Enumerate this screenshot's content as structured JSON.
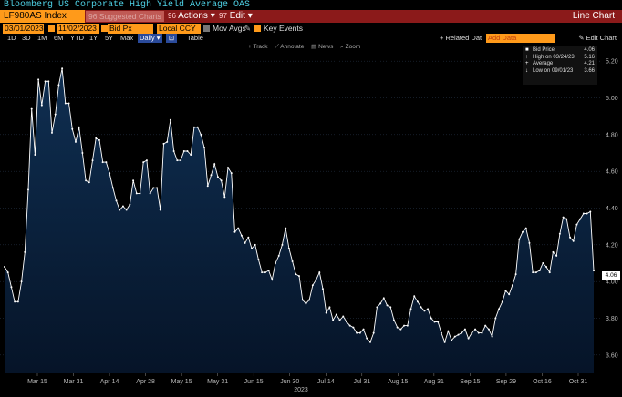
{
  "window_title": "Bloomberg US Corporate High Yield Average OAS",
  "command_bar": {
    "ticker": "LF980AS Index",
    "hint": "96 Suggested Charts",
    "actions": [
      {
        "num": "96",
        "label": "Actions ▾"
      },
      {
        "num": "97",
        "label": "Edit ▾"
      }
    ],
    "view_title": "Line Chart"
  },
  "controls": {
    "start_date": "03/01/2023",
    "end_date": "11/02/2023",
    "field": "Bid Px",
    "currency": "Local CCY",
    "mov_avgs": "Mov Avgs",
    "key_events": "Key Events"
  },
  "periods": [
    "1D",
    "3D",
    "1M",
    "6M",
    "YTD",
    "1Y",
    "5Y",
    "Max"
  ],
  "frequency": "Daily ▾",
  "table_label": "Table",
  "related_data_label": "+ Related Dat",
  "add_data_placeholder": "Add Data",
  "edit_chart_label": "✎ Edit Chart",
  "tools": [
    "+ Track",
    "⟋ Annotate",
    "▤ News",
    "⌕ Zoom"
  ],
  "legend": [
    {
      "icon": "■",
      "label": "Bid Price",
      "value": "4.06"
    },
    {
      "icon": "↑",
      "label": "High on 03/24/23",
      "value": "5.16"
    },
    {
      "icon": "+",
      "label": "Average",
      "value": "4.21"
    },
    {
      "icon": "↓",
      "label": "Low on 09/01/23",
      "value": "3.66"
    }
  ],
  "last_value_label": "4.06",
  "year_label": "2023",
  "colors": {
    "line": "#ffffff",
    "fill_top": "#0f2f52",
    "fill_bottom": "#061428",
    "accent": "#ff9a1a"
  },
  "chart_data": {
    "type": "area",
    "x_tick_labels": [
      "Mar 15",
      "Mar 31",
      "Apr 14",
      "Apr 28",
      "May 15",
      "May 31",
      "Jun 15",
      "Jun 30",
      "Jul 14",
      "Jul 31",
      "Aug 15",
      "Aug 31",
      "Sep 15",
      "Sep 29",
      "Oct 16",
      "Oct 31"
    ],
    "y_tick_labels": [
      "3.60",
      "3.80",
      "4.00",
      "4.20",
      "4.40",
      "4.60",
      "4.80",
      "5.00",
      "5.20"
    ],
    "ylim": [
      3.5,
      5.3
    ],
    "values": [
      4.08,
      4.05,
      3.97,
      3.89,
      3.89,
      4.0,
      4.16,
      4.5,
      4.94,
      4.69,
      5.1,
      4.96,
      5.09,
      5.09,
      4.81,
      4.91,
      5.07,
      5.16,
      4.97,
      4.97,
      4.83,
      4.76,
      4.84,
      4.7,
      4.55,
      4.54,
      4.66,
      4.78,
      4.77,
      4.65,
      4.65,
      4.59,
      4.51,
      4.44,
      4.39,
      4.41,
      4.39,
      4.42,
      4.55,
      4.48,
      4.48,
      4.65,
      4.66,
      4.48,
      4.51,
      4.51,
      4.39,
      4.75,
      4.76,
      4.88,
      4.71,
      4.66,
      4.66,
      4.71,
      4.71,
      4.69,
      4.84,
      4.84,
      4.8,
      4.73,
      4.52,
      4.58,
      4.64,
      4.57,
      4.55,
      4.46,
      4.62,
      4.59,
      4.27,
      4.29,
      4.25,
      4.21,
      4.24,
      4.18,
      4.2,
      4.12,
      4.05,
      4.05,
      4.06,
      4.01,
      4.1,
      4.14,
      4.2,
      4.29,
      4.18,
      4.11,
      4.04,
      4.03,
      3.9,
      3.88,
      3.9,
      3.98,
      4.01,
      4.05,
      3.96,
      3.83,
      3.86,
      3.79,
      3.82,
      3.79,
      3.81,
      3.78,
      3.76,
      3.75,
      3.72,
      3.72,
      3.74,
      3.69,
      3.67,
      3.72,
      3.86,
      3.88,
      3.91,
      3.87,
      3.86,
      3.79,
      3.75,
      3.74,
      3.76,
      3.76,
      3.85,
      3.92,
      3.89,
      3.86,
      3.84,
      3.85,
      3.8,
      3.78,
      3.78,
      3.72,
      3.67,
      3.73,
      3.68,
      3.7,
      3.71,
      3.72,
      3.74,
      3.69,
      3.72,
      3.74,
      3.72,
      3.72,
      3.76,
      3.74,
      3.7,
      3.8,
      3.85,
      3.89,
      3.95,
      3.93,
      3.98,
      4.04,
      4.23,
      4.27,
      4.29,
      4.21,
      4.05,
      4.05,
      4.06,
      4.1,
      4.08,
      4.05,
      4.16,
      4.14,
      4.26,
      4.35,
      4.34,
      4.24,
      4.22,
      4.31,
      4.34,
      4.37,
      4.37,
      4.38,
      4.06
    ]
  }
}
